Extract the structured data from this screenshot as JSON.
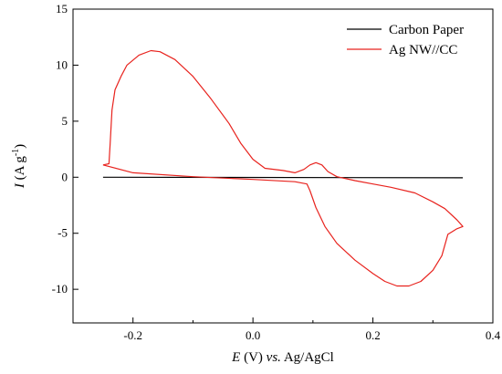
{
  "chart_data": {
    "type": "line",
    "title": "",
    "xlabel_parts": [
      "E",
      " (V) ",
      "vs.",
      " Ag/AgCl"
    ],
    "ylabel_parts": [
      "I",
      " (A g",
      "-1",
      ")"
    ],
    "xlim": [
      -0.3,
      0.4
    ],
    "ylim": [
      -13,
      15
    ],
    "x_ticks": [
      -0.2,
      0.0,
      0.2,
      0.4
    ],
    "x_tick_labels": [
      "-0.2",
      "0.0",
      "0.2",
      "0.4"
    ],
    "y_ticks": [
      -10,
      -5,
      0,
      5,
      10,
      15
    ],
    "y_tick_labels": [
      "-10",
      "-5",
      "0",
      "5",
      "10",
      "15"
    ],
    "grid": false,
    "legend_position": "top-right",
    "series": [
      {
        "name": "Carbon Paper",
        "color": "#000000",
        "points": [
          [
            -0.25,
            0.0
          ],
          [
            0.35,
            -0.05
          ]
        ]
      },
      {
        "name": "Ag NW//CC",
        "color": "#e8231e",
        "points": [
          [
            -0.25,
            1.1
          ],
          [
            -0.24,
            1.2
          ],
          [
            -0.238,
            3.0
          ],
          [
            -0.235,
            6.0
          ],
          [
            -0.23,
            7.8
          ],
          [
            -0.22,
            9.0
          ],
          [
            -0.21,
            10.0
          ],
          [
            -0.19,
            10.9
          ],
          [
            -0.17,
            11.3
          ],
          [
            -0.155,
            11.2
          ],
          [
            -0.13,
            10.5
          ],
          [
            -0.1,
            9.0
          ],
          [
            -0.07,
            7.0
          ],
          [
            -0.04,
            4.8
          ],
          [
            -0.02,
            3.0
          ],
          [
            0.0,
            1.6
          ],
          [
            0.02,
            0.8
          ],
          [
            0.05,
            0.6
          ],
          [
            0.07,
            0.4
          ],
          [
            0.085,
            0.7
          ],
          [
            0.095,
            1.1
          ],
          [
            0.105,
            1.3
          ],
          [
            0.115,
            1.1
          ],
          [
            0.125,
            0.5
          ],
          [
            0.14,
            0.05
          ],
          [
            0.17,
            -0.3
          ],
          [
            0.2,
            -0.6
          ],
          [
            0.23,
            -0.9
          ],
          [
            0.27,
            -1.4
          ],
          [
            0.3,
            -2.2
          ],
          [
            0.32,
            -2.8
          ],
          [
            0.34,
            -3.8
          ],
          [
            0.35,
            -4.4
          ],
          [
            0.34,
            -4.6
          ],
          [
            0.325,
            -5.1
          ],
          [
            0.315,
            -7.0
          ],
          [
            0.3,
            -8.3
          ],
          [
            0.28,
            -9.3
          ],
          [
            0.26,
            -9.7
          ],
          [
            0.24,
            -9.7
          ],
          [
            0.22,
            -9.3
          ],
          [
            0.2,
            -8.6
          ],
          [
            0.17,
            -7.4
          ],
          [
            0.14,
            -5.9
          ],
          [
            0.12,
            -4.4
          ],
          [
            0.105,
            -2.7
          ],
          [
            0.095,
            -1.2
          ],
          [
            0.09,
            -0.6
          ],
          [
            0.07,
            -0.4
          ],
          [
            0.0,
            -0.2
          ],
          [
            -0.1,
            0.05
          ],
          [
            -0.2,
            0.4
          ],
          [
            -0.25,
            1.1
          ]
        ]
      }
    ]
  }
}
